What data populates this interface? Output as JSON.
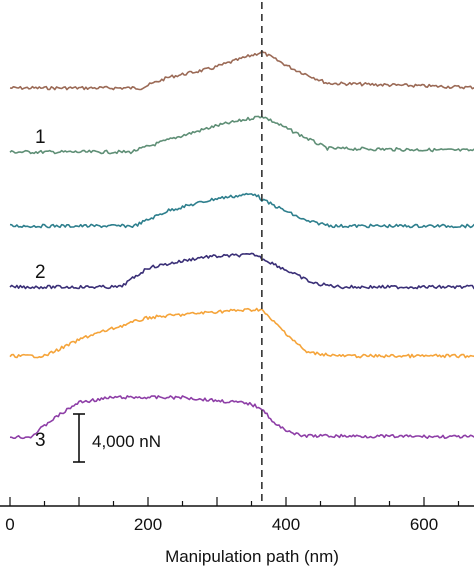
{
  "chart_data": {
    "type": "line",
    "title": "",
    "xlabel": "Manipulation path (nm)",
    "ylabel": "",
    "xlim": [
      0,
      700
    ],
    "x_ticks": [
      0,
      200,
      400,
      600
    ],
    "grid": false,
    "legend": "none",
    "marker_x": 365,
    "scale_bar_label": "4,000 nN",
    "series": [
      {
        "label": "",
        "color": "#9b6a56",
        "points": [
          [
            0,
            0
          ],
          [
            190,
            0
          ],
          [
            230,
            0.9
          ],
          [
            290,
            1.6
          ],
          [
            365,
            3.0
          ],
          [
            410,
            1.6
          ],
          [
            460,
            0.4
          ],
          [
            700,
            0
          ]
        ]
      },
      {
        "label": "1",
        "color": "#5f8f76",
        "points": [
          [
            0,
            0
          ],
          [
            175,
            0
          ],
          [
            240,
            1.2
          ],
          [
            300,
            2.2
          ],
          [
            365,
            3.0
          ],
          [
            400,
            2.0
          ],
          [
            460,
            0.3
          ],
          [
            700,
            0.1
          ]
        ]
      },
      {
        "label": "",
        "color": "#2e7f8d",
        "points": [
          [
            0,
            0
          ],
          [
            180,
            0
          ],
          [
            230,
            1.3
          ],
          [
            300,
            2.3
          ],
          [
            355,
            2.7
          ],
          [
            365,
            2.2
          ],
          [
            430,
            0.4
          ],
          [
            470,
            0
          ],
          [
            700,
            0
          ]
        ]
      },
      {
        "label": "2",
        "color": "#3a2f77",
        "points": [
          [
            0,
            0
          ],
          [
            160,
            0
          ],
          [
            200,
            1.6
          ],
          [
            280,
            2.5
          ],
          [
            355,
            2.7
          ],
          [
            365,
            2.4
          ],
          [
            440,
            0.3
          ],
          [
            480,
            0
          ],
          [
            700,
            0
          ]
        ]
      },
      {
        "label": "",
        "color": "#f5a43a",
        "points": [
          [
            0,
            0
          ],
          [
            50,
            0
          ],
          [
            110,
            1.6
          ],
          [
            200,
            3.2
          ],
          [
            300,
            3.7
          ],
          [
            365,
            3.9
          ],
          [
            370,
            3.5
          ],
          [
            430,
            0.3
          ],
          [
            480,
            0
          ],
          [
            700,
            0
          ]
        ]
      },
      {
        "label": "3",
        "color": "#8e3fa7",
        "points": [
          [
            0,
            0
          ],
          [
            30,
            0
          ],
          [
            60,
            1.4
          ],
          [
            100,
            2.9
          ],
          [
            150,
            3.3
          ],
          [
            250,
            3.3
          ],
          [
            345,
            2.8
          ],
          [
            365,
            2.4
          ],
          [
            385,
            1.0
          ],
          [
            420,
            0.1
          ],
          [
            700,
            0
          ]
        ]
      }
    ]
  }
}
